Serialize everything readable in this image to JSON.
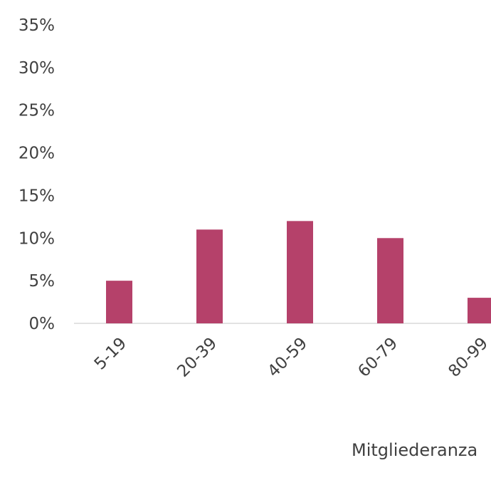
{
  "chart_data": {
    "type": "bar",
    "categories": [
      "5-19",
      "20-39",
      "40-59",
      "60-79",
      "80-99"
    ],
    "values": [
      5,
      11,
      12,
      10,
      3
    ],
    "value_unit": "%",
    "title": "",
    "xlabel": "Mitgliederanza",
    "ylabel": "",
    "ylim": [
      0,
      35
    ],
    "y_ticks": [
      "0%",
      "5%",
      "10%",
      "15%",
      "20%",
      "25%",
      "30%",
      "35%"
    ],
    "y_tick_values": [
      0,
      5,
      10,
      15,
      20,
      25,
      30,
      35
    ],
    "grid": false,
    "legend": "none",
    "bar_color": "#b5416a",
    "axis_color": "#d9d9d9",
    "text_color": "#404040"
  }
}
